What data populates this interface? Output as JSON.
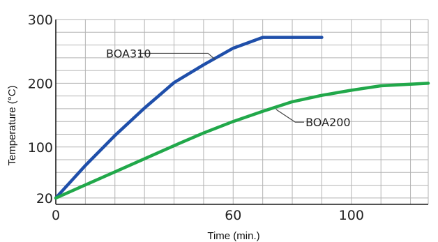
{
  "chart_data": {
    "type": "line",
    "xlabel": "Time (min.)",
    "ylabel": "Temperature (°C)",
    "xlim": [
      0,
      126
    ],
    "ylim": [
      10,
      300
    ],
    "x_ticks": [
      0,
      60,
      100
    ],
    "y_ticks": [
      20,
      100,
      200,
      300
    ],
    "grid": true,
    "colors": {
      "grid": "#b3b3b3",
      "axis": "#1a1a1a",
      "leader": "#444444"
    },
    "series": [
      {
        "name": "BOA310",
        "color": "#1f4faa",
        "points": [
          [
            0,
            20
          ],
          [
            10,
            71
          ],
          [
            20,
            118
          ],
          [
            30,
            161
          ],
          [
            40,
            201
          ],
          [
            50,
            229
          ],
          [
            60,
            255
          ],
          [
            70,
            272
          ],
          [
            80,
            272
          ],
          [
            90,
            272
          ]
        ]
      },
      {
        "name": "BOA200",
        "color": "#21a84a",
        "points": [
          [
            0,
            20
          ],
          [
            20,
            61
          ],
          [
            40,
            102
          ],
          [
            50,
            122
          ],
          [
            60,
            140
          ],
          [
            70,
            156
          ],
          [
            80,
            171
          ],
          [
            90,
            181
          ],
          [
            100,
            189
          ],
          [
            110,
            196
          ],
          [
            126,
            200
          ]
        ]
      }
    ]
  }
}
